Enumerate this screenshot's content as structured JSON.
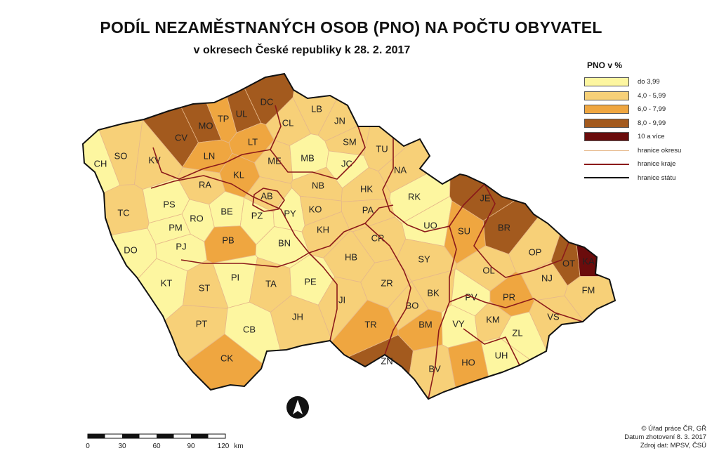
{
  "header": {
    "title": "PODÍL NEZAMĚSTNANÝCH OSOB (PNO) NA POČTU OBYVATEL",
    "subtitle": "v okresech České republiky k 28. 2. 2017"
  },
  "legend": {
    "title": "PNO v %",
    "classes": [
      {
        "label": "do 3,99",
        "color": "#fdf6a0"
      },
      {
        "label": "4,0 - 5,99",
        "color": "#f7d078"
      },
      {
        "label": "6,0 - 7,99",
        "color": "#efa640"
      },
      {
        "label": "8,0 - 9,99",
        "color": "#a35a1e"
      },
      {
        "label": "10 a více",
        "color": "#6b0c0c"
      }
    ],
    "lines": [
      {
        "label": "hranice okresu",
        "color": "#e6b88a"
      },
      {
        "label": "hranice kraje",
        "color": "#8b1a1a"
      },
      {
        "label": "hranice státu",
        "color": "#111111"
      }
    ]
  },
  "districts": [
    {
      "code": "CH",
      "class": 0
    },
    {
      "code": "SO",
      "class": 1
    },
    {
      "code": "KV",
      "class": 1
    },
    {
      "code": "CV",
      "class": 3
    },
    {
      "code": "MO",
      "class": 3
    },
    {
      "code": "TP",
      "class": 2
    },
    {
      "code": "UL",
      "class": 3
    },
    {
      "code": "DC",
      "class": 3
    },
    {
      "code": "LT",
      "class": 2
    },
    {
      "code": "LN",
      "class": 2
    },
    {
      "code": "CL",
      "class": 1
    },
    {
      "code": "LB",
      "class": 1
    },
    {
      "code": "JN",
      "class": 1
    },
    {
      "code": "SM",
      "class": 1
    },
    {
      "code": "TU",
      "class": 1
    },
    {
      "code": "NA",
      "class": 1
    },
    {
      "code": "ME",
      "class": 1
    },
    {
      "code": "MB",
      "class": 0
    },
    {
      "code": "JC",
      "class": 0
    },
    {
      "code": "KL",
      "class": 2
    },
    {
      "code": "RA",
      "class": 1
    },
    {
      "code": "AB",
      "class": 1
    },
    {
      "code": "NB",
      "class": 1
    },
    {
      "code": "HK",
      "class": 1
    },
    {
      "code": "RK",
      "class": 0
    },
    {
      "code": "TC",
      "class": 1
    },
    {
      "code": "PS",
      "class": 0
    },
    {
      "code": "PM",
      "class": 0
    },
    {
      "code": "RO",
      "class": 0
    },
    {
      "code": "BE",
      "class": 0
    },
    {
      "code": "PZ",
      "class": 0
    },
    {
      "code": "PY",
      "class": 0
    },
    {
      "code": "KO",
      "class": 1
    },
    {
      "code": "PA",
      "class": 1
    },
    {
      "code": "UO",
      "class": 0
    },
    {
      "code": "PJ",
      "class": 0
    },
    {
      "code": "PB",
      "class": 2
    },
    {
      "code": "BN",
      "class": 0
    },
    {
      "code": "KH",
      "class": 1
    },
    {
      "code": "CR",
      "class": 1
    },
    {
      "code": "DO",
      "class": 0
    },
    {
      "code": "HB",
      "class": 1
    },
    {
      "code": "SY",
      "class": 1
    },
    {
      "code": "SU",
      "class": 2
    },
    {
      "code": "JE",
      "class": 3
    },
    {
      "code": "BR",
      "class": 3
    },
    {
      "code": "OP",
      "class": 1
    },
    {
      "code": "OT",
      "class": 3
    },
    {
      "code": "KA",
      "class": 4
    },
    {
      "code": "OL",
      "class": 1
    },
    {
      "code": "NJ",
      "class": 1
    },
    {
      "code": "FM",
      "class": 1
    },
    {
      "code": "KT",
      "class": 0
    },
    {
      "code": "ST",
      "class": 1
    },
    {
      "code": "PI",
      "class": 0
    },
    {
      "code": "TA",
      "class": 1
    },
    {
      "code": "PE",
      "class": 0
    },
    {
      "code": "JI",
      "class": 1
    },
    {
      "code": "ZR",
      "class": 1
    },
    {
      "code": "BK",
      "class": 1
    },
    {
      "code": "PV",
      "class": 0
    },
    {
      "code": "PR",
      "class": 2
    },
    {
      "code": "BO",
      "class": 1
    },
    {
      "code": "PT",
      "class": 1
    },
    {
      "code": "JH",
      "class": 1
    },
    {
      "code": "TR",
      "class": 2
    },
    {
      "code": "BM",
      "class": 2
    },
    {
      "code": "VY",
      "class": 0
    },
    {
      "code": "KM",
      "class": 1
    },
    {
      "code": "VS",
      "class": 1
    },
    {
      "code": "ZL",
      "class": 0
    },
    {
      "code": "CB",
      "class": 0
    },
    {
      "code": "UH",
      "class": 0
    },
    {
      "code": "CK",
      "class": 2
    },
    {
      "code": "ZN",
      "class": 3
    },
    {
      "code": "BV",
      "class": 1
    },
    {
      "code": "HO",
      "class": 2
    }
  ],
  "scale_bar": {
    "ticks": [
      "0",
      "30",
      "60",
      "90",
      "120"
    ],
    "unit": "km"
  },
  "credits": {
    "line1": "© Úřad práce ČR, GŘ",
    "line2": "Datum zhotovení 8. 3. 2017",
    "line3": "Zdroj dat: MPSV, ČSÚ"
  }
}
